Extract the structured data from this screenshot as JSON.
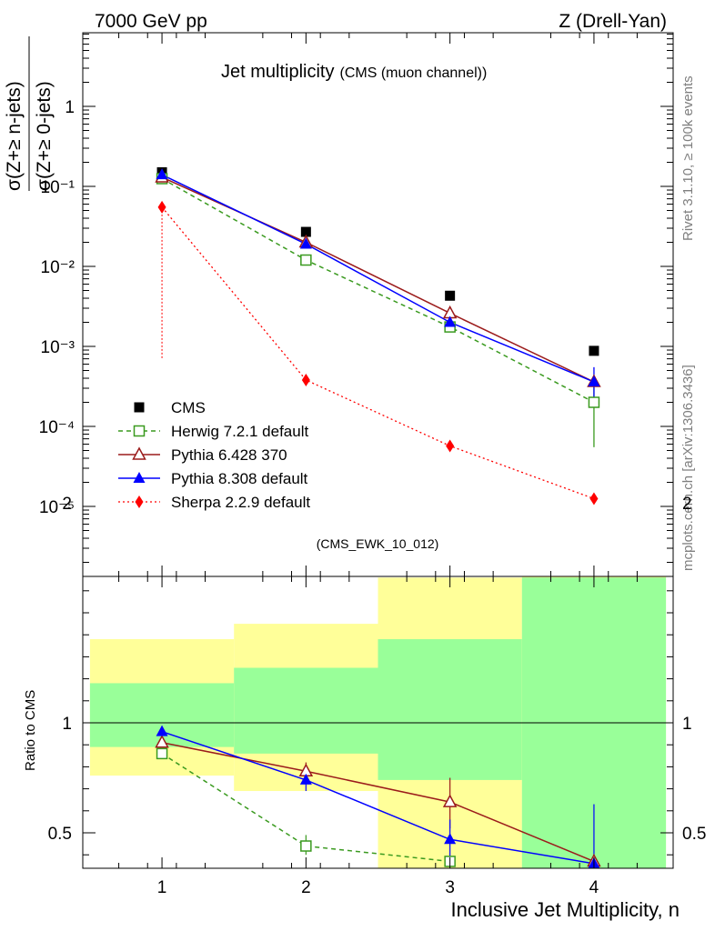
{
  "header": {
    "left": "7000 GeV pp",
    "right": "Z (Drell-Yan)"
  },
  "side_labels": {
    "rivet": "Rivet 3.1.10, ≥ 100k events",
    "mcplots": "mcplots.cern.ch [arXiv:1306.3436]"
  },
  "colors": {
    "cms": "#000000",
    "herwig": "#3a9a1f",
    "pythia6": "#9b1b1b",
    "pythia8": "#0000ff",
    "sherpa": "#ff0000",
    "band_inner": "#99ff99",
    "band_outer": "#ffff99"
  },
  "chart_data": [
    {
      "type": "scatter",
      "title": "Jet multiplicity",
      "subtitle": "(CMS (muon channel))",
      "watermark": "(CMS_EWK_10_012)",
      "ylabel_top": "σ(Z+≥ n-jets)",
      "ylabel_bottom": "σ(Z+≥ 0-jets)",
      "yscale": "log",
      "ylim": [
        3e-06,
        1
      ],
      "xlim": [
        0.45,
        4.55
      ],
      "ytick_labels": [
        "1",
        "10⁻¹",
        "10⁻²",
        "10⁻³",
        "10⁻⁴",
        "10⁻⁵"
      ],
      "x": [
        1,
        2,
        3,
        4
      ],
      "legend_position": "bottom-left",
      "series": [
        {
          "name": "CMS",
          "values": [
            0.15,
            0.027,
            0.0043,
            0.00088
          ]
        },
        {
          "name": "Herwig 7.2.1 default",
          "values": [
            0.125,
            0.012,
            0.00175,
            0.0002
          ],
          "err_last": [
            5.5e-05,
            0.00033
          ]
        },
        {
          "name": "Pythia 6.428 370",
          "values": [
            0.13,
            0.02,
            0.0026,
            0.00036
          ]
        },
        {
          "name": "Pythia 8.308 default",
          "values": [
            0.14,
            0.019,
            0.002,
            0.00036
          ],
          "err_last": [
            0.00022,
            0.00055
          ]
        },
        {
          "name": "Sherpa 2.2.9 default",
          "values": [
            0.055,
            0.00038,
            5.7e-05,
            1.25e-05
          ]
        }
      ]
    },
    {
      "type": "line",
      "ylabel": "Ratio to CMS",
      "xlabel": "Inclusive Jet Multiplicity, n",
      "ylim": [
        0.34,
        2.28
      ],
      "xlim": [
        0.45,
        4.55
      ],
      "x_tick_labels": [
        "1",
        "2",
        "3",
        "4"
      ],
      "y_tick_labels": [
        "0.5",
        "1",
        "2"
      ],
      "bands": [
        {
          "x": [
            0.5,
            1.5
          ],
          "inner": [
            0.89,
            1.18
          ],
          "outer": [
            0.76,
            1.38
          ]
        },
        {
          "x": [
            1.5,
            2.5
          ],
          "inner": [
            0.86,
            1.25
          ],
          "outer": [
            0.69,
            1.45
          ]
        },
        {
          "x": [
            2.5,
            3.5
          ],
          "inner": [
            0.74,
            1.38
          ],
          "outer": [
            0.34,
            1.66
          ]
        },
        {
          "x": [
            3.5,
            4.5
          ],
          "inner": [
            0.34,
            1.66
          ],
          "outer": [
            0.34,
            2.16
          ]
        }
      ],
      "series": [
        {
          "name": "Herwig 7.2.1 default",
          "x": [
            1,
            2,
            3
          ],
          "values": [
            0.86,
            0.44,
            0.37
          ]
        },
        {
          "name": "Pythia 6.428 370",
          "x": [
            1,
            2,
            3,
            4
          ],
          "values": [
            0.91,
            0.78,
            0.64,
            0.37
          ]
        },
        {
          "name": "Pythia 8.308 default",
          "x": [
            1,
            2,
            3,
            4
          ],
          "values": [
            0.96,
            0.74,
            0.47,
            0.36
          ]
        }
      ]
    }
  ]
}
